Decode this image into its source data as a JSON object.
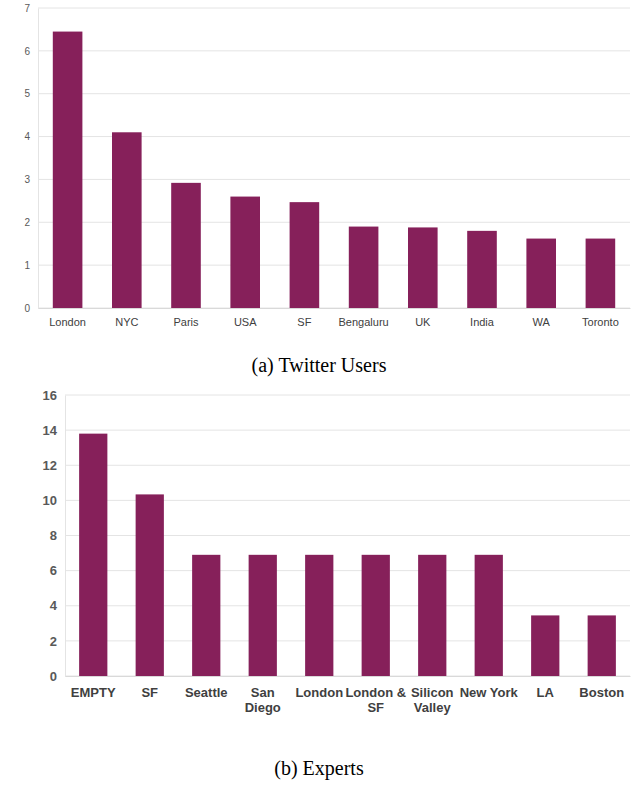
{
  "chart_data": [
    {
      "type": "bar",
      "title": "(a) Twitter Users",
      "categories": [
        "London",
        "NYC",
        "Paris",
        "USA",
        "SF",
        "Bengaluru",
        "UK",
        "India",
        "WA",
        "Toronto"
      ],
      "values": [
        6.45,
        4.1,
        2.92,
        2.6,
        2.47,
        1.9,
        1.88,
        1.8,
        1.62,
        1.62
      ],
      "color": "#86205a",
      "ylim": [
        0,
        7
      ],
      "yticks": [
        0,
        1,
        2,
        3,
        4,
        5,
        6,
        7
      ],
      "grid": true
    },
    {
      "type": "bar",
      "title": "(b) Experts",
      "categories": [
        "EMPTY",
        "SF",
        "Seattle",
        "San Diego",
        "London",
        "London & SF",
        "Silicon Valley",
        "New York",
        "LA",
        "Boston"
      ],
      "values": [
        13.8,
        10.34,
        6.9,
        6.9,
        6.9,
        6.9,
        6.9,
        6.9,
        3.45,
        3.45
      ],
      "color": "#86205a",
      "ylim": [
        0,
        16
      ],
      "yticks": [
        0,
        2,
        4,
        6,
        8,
        10,
        12,
        14,
        16
      ],
      "grid": true
    }
  ]
}
